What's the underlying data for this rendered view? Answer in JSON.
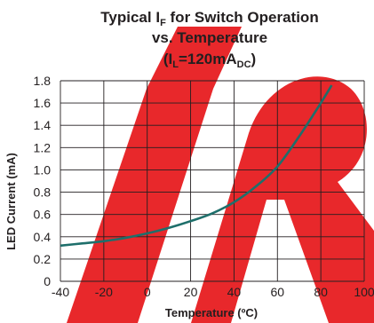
{
  "chart_data": {
    "type": "line",
    "title_line1_prefix": "Typical I",
    "title_line1_sub": "F",
    "title_line1_suffix": " for Switch Operation",
    "title_line2": "vs. Temperature",
    "title_line3_prefix": "(I",
    "title_line3_sub1": "L",
    "title_line3_mid": "=120mA",
    "title_line3_sub2": "DC",
    "title_line3_suffix": ")",
    "xlabel": "Temperature (ºC)",
    "ylabel": "LED Current (mA)",
    "xlim": [
      -40,
      100
    ],
    "ylim": [
      0,
      1.8
    ],
    "x_ticks": [
      "-40",
      "-20",
      "0",
      "20",
      "40",
      "60",
      "80",
      "100"
    ],
    "y_ticks": [
      "0",
      "0.2",
      "0.4",
      "0.6",
      "0.8",
      "1.0",
      "1.2",
      "1.4",
      "1.6",
      "1.8"
    ],
    "grid": true,
    "series": [
      {
        "color": "#1e6f6b",
        "x": [
          -40,
          -30,
          -20,
          -10,
          0,
          10,
          20,
          30,
          40,
          50,
          60,
          70,
          80,
          85
        ],
        "y": [
          0.32,
          0.34,
          0.36,
          0.39,
          0.43,
          0.48,
          0.54,
          0.61,
          0.71,
          0.85,
          1.03,
          1.3,
          1.6,
          1.76
        ]
      }
    ],
    "watermark_color": "#e8282b"
  }
}
